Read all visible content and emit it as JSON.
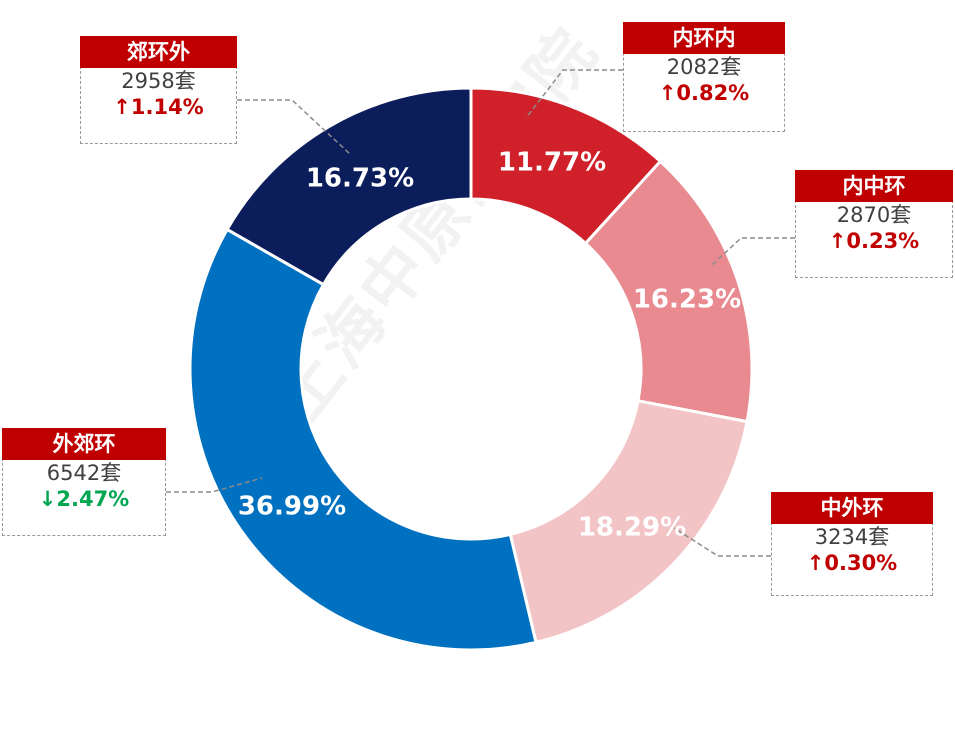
{
  "watermark": "上海中原研究院",
  "chart_data": {
    "type": "pie",
    "donut": true,
    "unit": "套",
    "slices": [
      {
        "name": "内环内",
        "percent": "11.77%",
        "value": 11.77,
        "count": "2082套",
        "change": "↑0.82%",
        "direction": "up",
        "color": "#d0202a"
      },
      {
        "name": "内中环",
        "percent": "16.23%",
        "value": 16.23,
        "count": "2870套",
        "change": "↑0.23%",
        "direction": "up",
        "color": "#e88a90"
      },
      {
        "name": "中外环",
        "percent": "18.29%",
        "value": 18.29,
        "count": "3234套",
        "change": "↑0.30%",
        "direction": "up",
        "color": "#f2c4c6"
      },
      {
        "name": "外郊环",
        "percent": "36.99%",
        "value": 36.99,
        "count": "6542套",
        "change": "↓2.47%",
        "direction": "down",
        "color": "#0070c0"
      },
      {
        "name": "郊环外",
        "percent": "16.73%",
        "value": 16.73,
        "count": "2958套",
        "change": "↑1.14%",
        "direction": "up",
        "color": "#0c1d5c"
      }
    ],
    "colors": {
      "up": "#c00000",
      "down": "#00a651",
      "label_header": "#c00000"
    }
  }
}
